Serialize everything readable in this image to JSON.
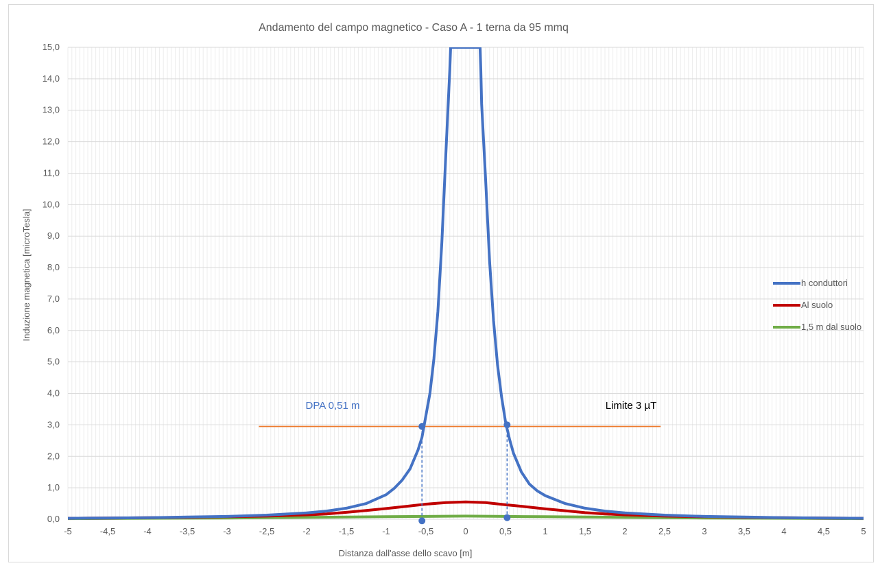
{
  "chart_data": {
    "type": "line",
    "title": "Andamento del  campo magnetico - Caso A - 1 terna da 95 mmq",
    "xlabel": "Distanza dall'asse dello scavo [m]",
    "ylabel": "Induzione magnetica [microTesla]",
    "xlim": [
      -5,
      5
    ],
    "ylim": [
      0,
      15
    ],
    "x_ticks": [
      "-5",
      "-4,5",
      "-4",
      "-3,5",
      "-3",
      "-2,5",
      "-2",
      "-1,5",
      "-1",
      "-0,5",
      "0",
      "0,5",
      "1",
      "1,5",
      "2",
      "2,5",
      "3",
      "3,5",
      "4",
      "4,5",
      "5"
    ],
    "y_ticks": [
      "0,0",
      "1,0",
      "2,0",
      "3,0",
      "4,0",
      "5,0",
      "6,0",
      "7,0",
      "8,0",
      "9,0",
      "10,0",
      "11,0",
      "12,0",
      "13,0",
      "14,0",
      "15,0"
    ],
    "grid": true,
    "legend_position": "right",
    "series": [
      {
        "name": "h conduttori",
        "color": "#4472c4",
        "x": [
          -5,
          -4.5,
          -4,
          -3.5,
          -3,
          -2.5,
          -2,
          -1.75,
          -1.5,
          -1.25,
          -1,
          -0.9,
          -0.8,
          -0.7,
          -0.6,
          -0.55,
          -0.5,
          -0.45,
          -0.4,
          -0.35,
          -0.3,
          -0.25,
          -0.2,
          -0.19,
          0.18,
          0.19,
          0.2,
          0.25,
          0.3,
          0.35,
          0.4,
          0.45,
          0.5,
          0.55,
          0.6,
          0.7,
          0.8,
          0.9,
          1,
          1.25,
          1.5,
          1.75,
          2,
          2.5,
          3,
          3.5,
          4,
          4.5,
          5
        ],
        "y": [
          0.03,
          0.04,
          0.05,
          0.07,
          0.09,
          0.13,
          0.2,
          0.26,
          0.35,
          0.5,
          0.78,
          0.98,
          1.24,
          1.6,
          2.2,
          2.6,
          3.3,
          4.0,
          5.1,
          6.6,
          8.8,
          11.6,
          14.3,
          15.0,
          15.0,
          14.3,
          13.2,
          10.8,
          8.2,
          6.3,
          4.9,
          3.9,
          3.1,
          2.55,
          2.1,
          1.5,
          1.12,
          0.9,
          0.75,
          0.5,
          0.35,
          0.26,
          0.2,
          0.13,
          0.09,
          0.07,
          0.05,
          0.04,
          0.03
        ]
      },
      {
        "name": "Al suolo",
        "color": "#c00000",
        "x": [
          -5,
          -4.5,
          -4,
          -3.5,
          -3,
          -2.5,
          -2,
          -1.75,
          -1.5,
          -1.25,
          -1,
          -0.75,
          -0.5,
          -0.25,
          0,
          0.25,
          0.5,
          0.75,
          1,
          1.25,
          1.5,
          1.75,
          2,
          2.5,
          3,
          3.5,
          4,
          4.5,
          5
        ],
        "y": [
          0.03,
          0.04,
          0.05,
          0.06,
          0.08,
          0.1,
          0.14,
          0.17,
          0.22,
          0.28,
          0.34,
          0.41,
          0.48,
          0.53,
          0.55,
          0.53,
          0.46,
          0.4,
          0.33,
          0.27,
          0.21,
          0.17,
          0.14,
          0.1,
          0.08,
          0.06,
          0.05,
          0.04,
          0.03
        ]
      },
      {
        "name": "1,5 m dal suolo",
        "color": "#70ad47",
        "x": [
          -5,
          -4,
          -3,
          -2,
          -1,
          -0.5,
          0,
          0.5,
          1,
          2,
          3,
          4,
          5
        ],
        "y": [
          0.02,
          0.03,
          0.04,
          0.06,
          0.08,
          0.09,
          0.1,
          0.09,
          0.08,
          0.06,
          0.04,
          0.03,
          0.02
        ]
      }
    ],
    "limit_line": {
      "label": "Limite 3 µT",
      "y": 3,
      "x_range": [
        -2.6,
        2.45
      ],
      "color": "#ed7d31"
    },
    "dpa": {
      "label": "DPA 0,51 m",
      "color": "#4472c4",
      "points": [
        {
          "x": -0.55,
          "y": 2.95
        },
        {
          "x": 0.52,
          "y": 3.0
        }
      ],
      "base_points": [
        {
          "x": -0.55,
          "y": -0.05
        },
        {
          "x": 0.52,
          "y": 0.05
        }
      ]
    }
  }
}
